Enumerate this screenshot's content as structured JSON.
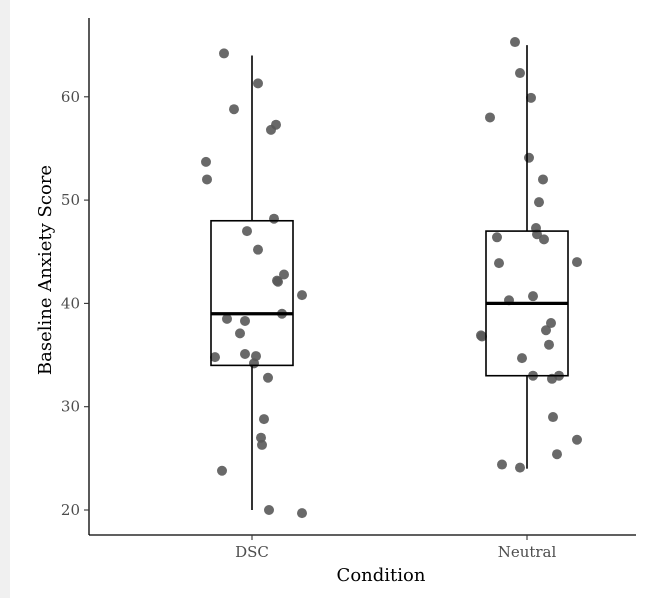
{
  "chart_data": {
    "type": "boxplot",
    "xlabel": "Condition",
    "ylabel": "Baseline Anxiety Score",
    "categories": [
      "DSC",
      "Neutral"
    ],
    "yticks": [
      20,
      30,
      40,
      50,
      60
    ],
    "ylim": [
      18.3,
      67.2
    ],
    "grid": false,
    "boxes": [
      {
        "category": "DSC",
        "whisker_low": 20,
        "q1": 34,
        "median": 39,
        "q3": 48,
        "whisker_high": 64
      },
      {
        "category": "Neutral",
        "whisker_low": 24,
        "q1": 33,
        "median": 40,
        "q3": 47,
        "whisker_high": 65
      }
    ],
    "points": [
      {
        "category": "DSC",
        "values": [
          64.2,
          61.3,
          58.8,
          57.3,
          56.8,
          53.7,
          52.0,
          48.2,
          47.0,
          45.2,
          42.8,
          42.2,
          42.1,
          40.8,
          39.0,
          38.5,
          38.3,
          37.1,
          35.1,
          34.9,
          34.8,
          34.2,
          32.8,
          28.8,
          27.0,
          26.3,
          23.8,
          20.0,
          19.7
        ]
      },
      {
        "category": "Neutral",
        "values": [
          65.3,
          62.3,
          59.9,
          58.0,
          54.1,
          52.0,
          49.8,
          47.3,
          46.7,
          46.4,
          46.2,
          44.0,
          43.9,
          40.7,
          40.3,
          38.1,
          37.4,
          36.9,
          36.8,
          36.0,
          34.7,
          33.0,
          33.0,
          32.7,
          29.0,
          26.8,
          25.4,
          24.4,
          24.1
        ]
      }
    ],
    "colors": {
      "point": "#595959",
      "box": "#000000",
      "background": "#ffffff"
    }
  }
}
